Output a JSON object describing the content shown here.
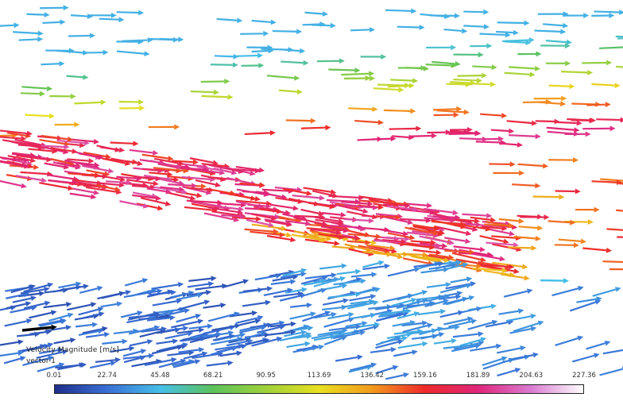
{
  "chart_data": {
    "type": "vector",
    "legend": {
      "title": "Velocity Magnitude [m/s]",
      "subtitle": "vector-1",
      "ticks": [
        "0.01",
        "22.74",
        "45.48",
        "68.21",
        "90.95",
        "113.69",
        "136.42",
        "159.16",
        "181.89",
        "204.63",
        "227.36"
      ],
      "range": [
        0.01,
        227.36
      ],
      "colormap": [
        "#1f2f8c",
        "#3a6fd6",
        "#45c0e8",
        "#5cc25a",
        "#9fd13a",
        "#e8e020",
        "#f29a1c",
        "#ee2a2a",
        "#e0257a",
        "#d97ad0",
        "#ffffff"
      ]
    }
  },
  "reference_arrow_color": "#000000"
}
